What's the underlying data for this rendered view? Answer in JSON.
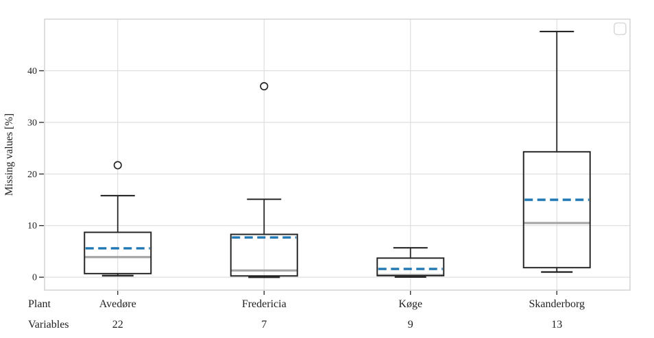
{
  "chart_data": {
    "type": "boxplot",
    "title": "",
    "ylabel": "Missing values [%]",
    "xlabel": "",
    "ylim": [
      -2.5,
      50
    ],
    "yticks": [
      0,
      10,
      20,
      30,
      40
    ],
    "grid": "horizontal gridlines at yticks and vertical gridlines at category centers",
    "legend": "empty legend frame, upper right",
    "category_row_label": "Plant",
    "variables_row_label": "Variables",
    "categories": [
      "Avedøre",
      "Fredericia",
      "Køge",
      "Skanderborg"
    ],
    "variables": [
      "22",
      "7",
      "9",
      "13"
    ],
    "series": [
      {
        "category": "Avedøre",
        "slug": "avedore",
        "variables": 22,
        "whisker_low": 0.3,
        "q1": 0.7,
        "median": 3.9,
        "mean": 5.6,
        "q3": 8.7,
        "whisker_high": 15.8,
        "outliers": [
          21.7
        ]
      },
      {
        "category": "Fredericia",
        "slug": "fredericia",
        "variables": 7,
        "whisker_low": 0.0,
        "q1": 0.25,
        "median": 1.3,
        "mean": 7.7,
        "q3": 8.3,
        "whisker_high": 15.1,
        "outliers": [
          37.0
        ]
      },
      {
        "category": "Køge",
        "slug": "koge",
        "variables": 9,
        "whisker_low": 0.05,
        "q1": 0.3,
        "median": 0.4,
        "mean": 1.6,
        "q3": 3.7,
        "whisker_high": 5.7,
        "outliers": []
      },
      {
        "category": "Skanderborg",
        "slug": "skanderborg",
        "variables": 13,
        "whisker_low": 1.0,
        "q1": 1.85,
        "median": 10.5,
        "mean": 15.0,
        "q3": 24.3,
        "whisker_high": 47.6,
        "outliers": []
      }
    ],
    "colors": {
      "mean_line": "#1f77b4",
      "median_line": "#a6a6a6",
      "box_line": "#262626",
      "gridline": "#dcdcdc",
      "spine": "#cfcfcf",
      "text": "#1f1f1f"
    }
  }
}
